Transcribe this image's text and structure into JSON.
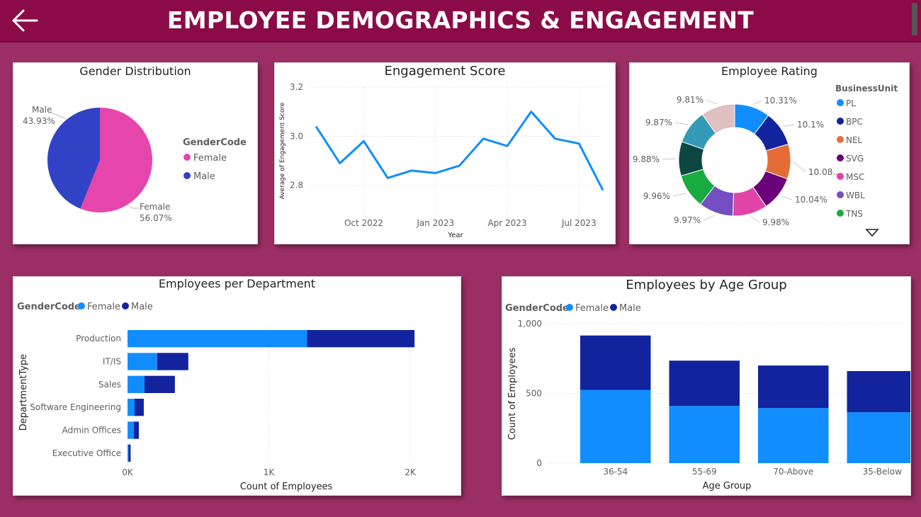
{
  "header": {
    "title": "EMPLOYEE DEMOGRAPHICS & ENGAGEMENT",
    "back_icon": "arrow-left-icon",
    "color": "#8a0b47"
  },
  "colors": {
    "background": "#9b2e64",
    "female": "#118dff",
    "male": "#12239e"
  },
  "chart_data": [
    {
      "type": "pie",
      "title": "Gender Distribution",
      "legend_title": "GenderCode",
      "legend_position": "right",
      "slices": [
        {
          "name": "Female",
          "value": 56.07,
          "label": "Female",
          "pct": "56.07%",
          "color": "#e645ab"
        },
        {
          "name": "Male",
          "value": 43.93,
          "label": "Male",
          "pct": "43.93%",
          "color": "#3142c6"
        }
      ]
    },
    {
      "type": "line",
      "title": "Engagement Score",
      "xlabel": "Year",
      "ylabel": "Average of Engagement Score",
      "x": [
        "2022-08",
        "2022-09",
        "2022-10",
        "2022-11",
        "2022-12",
        "2023-01",
        "2023-02",
        "2023-03",
        "2023-04",
        "2023-05",
        "2023-06",
        "2023-07",
        "2023-08"
      ],
      "values": [
        3.04,
        2.89,
        2.98,
        2.83,
        2.86,
        2.85,
        2.88,
        2.99,
        2.96,
        3.1,
        2.99,
        2.97,
        2.78
      ],
      "xticks": [
        "Oct 2022",
        "Jan 2023",
        "Apr 2023",
        "Jul 2023"
      ],
      "xtick_positions": [
        "2022-10",
        "2023-01",
        "2023-04",
        "2023-07"
      ],
      "yticks": [
        "2.8",
        "3.0",
        "3.2"
      ],
      "ylim": [
        2.75,
        3.2
      ],
      "color": "#118dff",
      "grid": true
    },
    {
      "type": "pie",
      "donut": true,
      "title": "Employee Rating",
      "legend_title": "BusinessUnit",
      "legend_position": "right",
      "legend": [
        "PL",
        "BPC",
        "NEL",
        "SVG",
        "MSC",
        "WBL",
        "TNS"
      ],
      "slices": [
        {
          "name": "PL",
          "value": 10.31,
          "label": "10.31%",
          "color": "#118dff"
        },
        {
          "name": "BPC",
          "value": 10.1,
          "label": "10.1%",
          "color": "#12239e"
        },
        {
          "name": "NEL",
          "value": 10.08,
          "label": "10.08...",
          "color": "#e66c37"
        },
        {
          "name": "SVG",
          "value": 10.04,
          "label": "10.04%",
          "color": "#6b007b"
        },
        {
          "name": "MSC",
          "value": 9.98,
          "label": "9.98%",
          "color": "#e044a7"
        },
        {
          "name": "WBL",
          "value": 9.97,
          "label": "9.97%",
          "color": "#744ec2"
        },
        {
          "name": "TNS",
          "value": 9.96,
          "label": "9.96%",
          "color": "#1aab40"
        },
        {
          "name": "",
          "value": 9.88,
          "label": "9.88%",
          "color": "#0d4743"
        },
        {
          "name": "",
          "value": 9.87,
          "label": "9.87%",
          "color": "#3599b8"
        },
        {
          "name": "",
          "value": 9.81,
          "label": "9.81%",
          "color": "#dfbfbf"
        }
      ]
    },
    {
      "type": "bar",
      "orientation": "horizontal",
      "stacked": true,
      "title": "Employees per Department",
      "legend_title": "GenderCode",
      "legend_position": "top-left",
      "xlabel": "Count of Employees",
      "ylabel": "DepartmentType",
      "categories": [
        "Production",
        "IT/IS",
        "Sales",
        "Software Engineering",
        "Admin Offices",
        "Executive Office"
      ],
      "series": [
        {
          "name": "Female",
          "values": [
            1270,
            210,
            120,
            50,
            45,
            8
          ],
          "color": "#118dff"
        },
        {
          "name": "Male",
          "values": [
            760,
            220,
            215,
            65,
            35,
            14
          ],
          "color": "#12239e"
        }
      ],
      "xticks": [
        "0K",
        "1K",
        "2K"
      ],
      "xlim": [
        0,
        2250
      ],
      "grid": true
    },
    {
      "type": "bar",
      "stacked": true,
      "title": "Employees by Age Group",
      "legend_title": "GenderCode",
      "legend_position": "top-left",
      "xlabel": "Age Group",
      "ylabel": "Count of Employees",
      "categories": [
        "36-54",
        "55-69",
        "70-Above",
        "35-Below"
      ],
      "series": [
        {
          "name": "Female",
          "values": [
            525,
            410,
            395,
            365
          ],
          "color": "#118dff"
        },
        {
          "name": "Male",
          "values": [
            390,
            325,
            305,
            295
          ],
          "color": "#12239e"
        }
      ],
      "yticks": [
        "0",
        "500",
        "1,000"
      ],
      "ylim": [
        0,
        1000
      ],
      "grid": true
    }
  ]
}
